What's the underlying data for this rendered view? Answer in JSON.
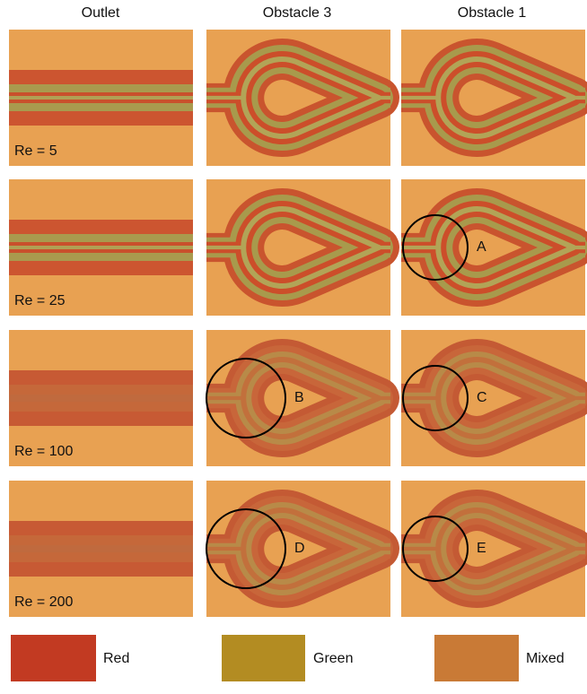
{
  "columns": [
    "Outlet",
    "Obstacle 3",
    "Obstacle 1"
  ],
  "rows": [
    {
      "label": "Re = 5"
    },
    {
      "label": "Re = 25",
      "obstacle_1_circle": "A"
    },
    {
      "label": "Re = 100",
      "obstacle_3_circle": "B",
      "obstacle_1_circle": "C"
    },
    {
      "label": "Re = 200",
      "obstacle_3_circle": "D",
      "obstacle_1_circle": "E"
    }
  ],
  "legend": [
    "Red",
    "Green",
    "Mixed"
  ]
}
